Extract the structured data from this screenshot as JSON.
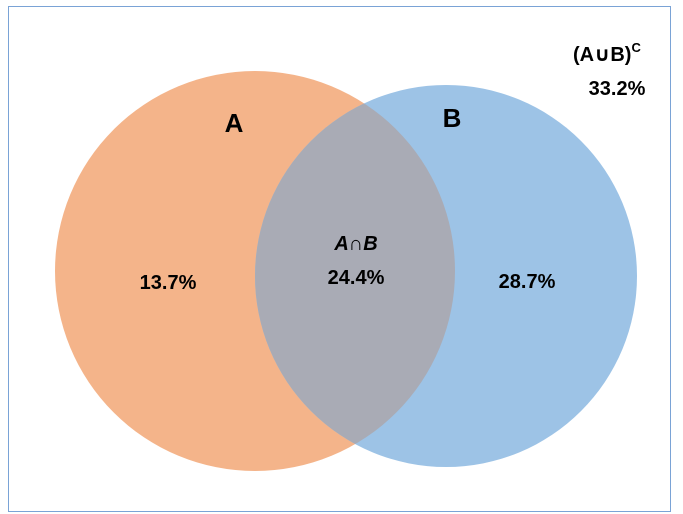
{
  "diagram": {
    "type": "venn",
    "sets": [
      {
        "label": "A",
        "color": "#f4b48a"
      },
      {
        "label": "B",
        "color": "#9dc3e6"
      }
    ],
    "regions": {
      "a_only": "13.7%",
      "intersection_label": "A∩B",
      "intersection_value": "24.4%",
      "b_only": "28.7%",
      "complement_label": "(A∪B)",
      "complement_superscript": "C",
      "complement_value": "33.2%"
    },
    "colors": {
      "border": "#7aa3d6",
      "overlap": "#a9abb5"
    }
  }
}
